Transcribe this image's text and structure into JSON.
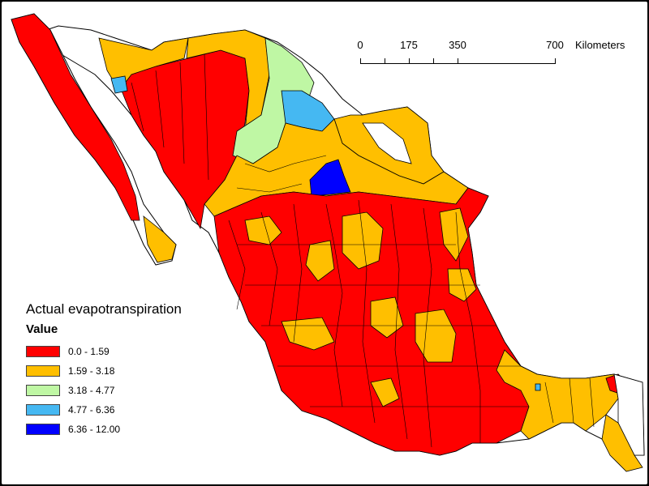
{
  "colors": {
    "class_1": "#ff0000",
    "class_2": "#ffbf00",
    "class_3": "#bff7a4",
    "class_4": "#45b8f2",
    "class_5": "#0000ff",
    "no_data": "#ffffff",
    "outline": "#000000"
  },
  "scale_bar": {
    "labels": [
      "0",
      "175",
      "350",
      "700"
    ],
    "values": [
      0,
      175,
      350,
      700
    ],
    "unit": "Kilometers"
  },
  "legend": {
    "title": "Actual evapotranspiration",
    "subtitle": "Value",
    "items": [
      {
        "label": "0.0 - 1.59",
        "color": "#ff0000"
      },
      {
        "label": "1.59 - 3.18",
        "color": "#ffbf00"
      },
      {
        "label": "3.18 - 4.77",
        "color": "#bff7a4"
      },
      {
        "label": "4.77 - 6.36",
        "color": "#45b8f2"
      },
      {
        "label": "6.36 - 12.00",
        "color": "#0000ff"
      }
    ]
  }
}
